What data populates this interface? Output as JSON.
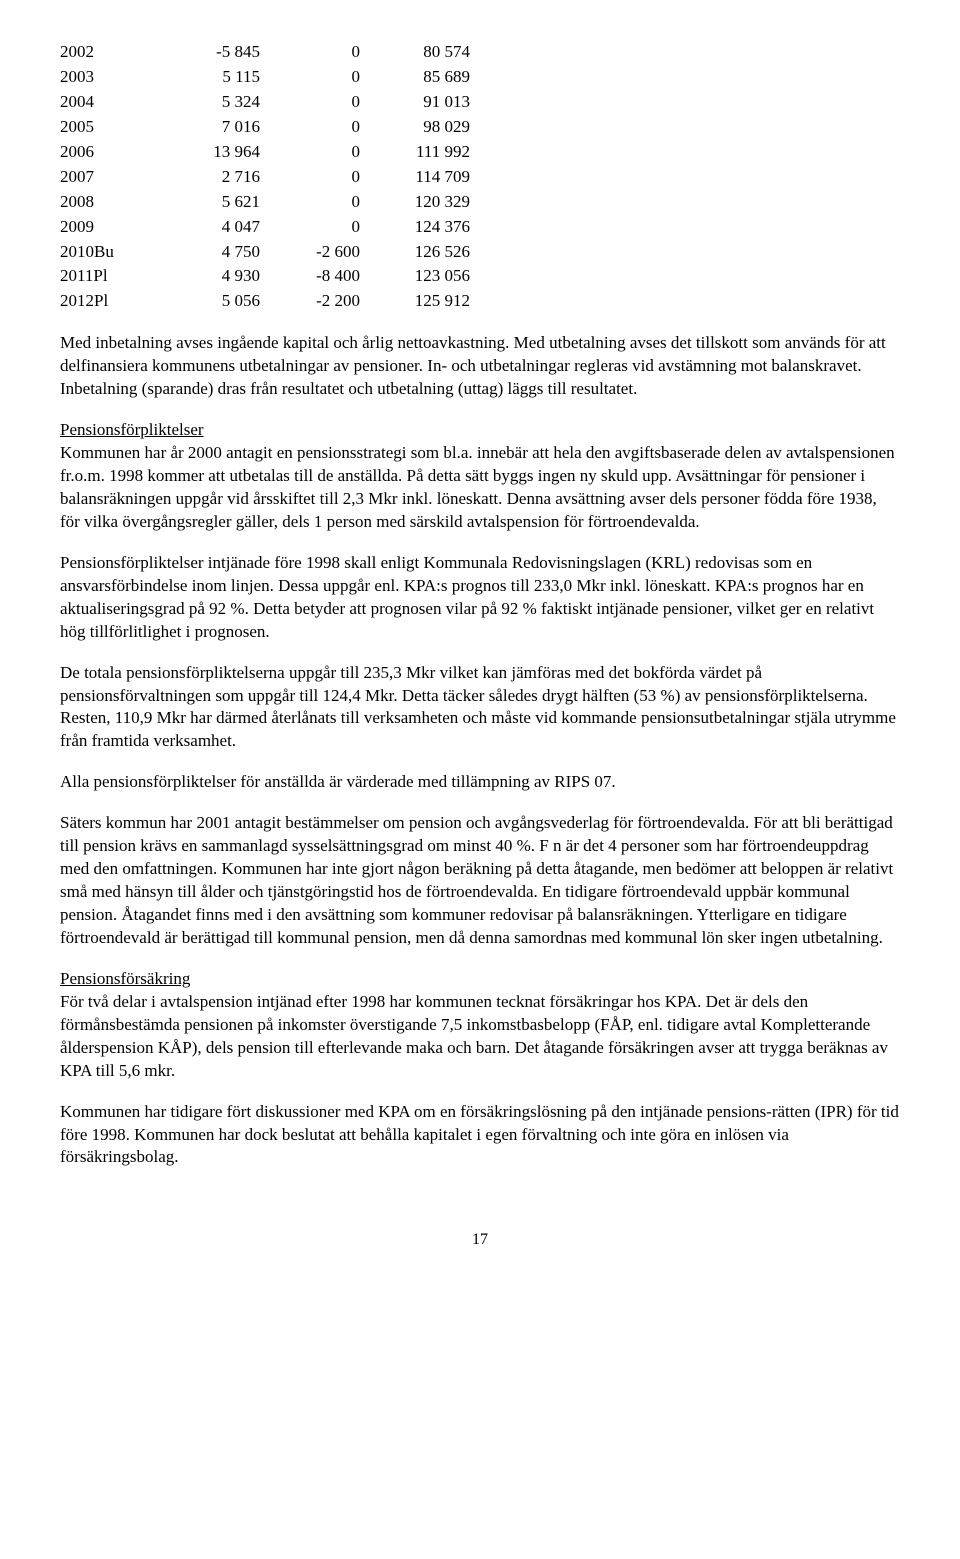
{
  "table": {
    "rows": [
      [
        "2002",
        "-5 845",
        "0",
        "80 574"
      ],
      [
        "2003",
        "5 115",
        "0",
        "85 689"
      ],
      [
        "2004",
        "5 324",
        "0",
        "91 013"
      ],
      [
        "2005",
        "7 016",
        "0",
        "98 029"
      ],
      [
        "2006",
        "13 964",
        "0",
        "111 992"
      ],
      [
        "2007",
        "2 716",
        "0",
        "114 709"
      ],
      [
        "2008",
        "5 621",
        "0",
        "120 329"
      ],
      [
        "2009",
        "4 047",
        "0",
        "124 376"
      ],
      [
        "2010Bu",
        "4 750",
        "-2 600",
        "126 526"
      ],
      [
        "2011Pl",
        "4 930",
        "-8 400",
        "123 056"
      ],
      [
        "2012Pl",
        "5 056",
        "-2 200",
        "125 912"
      ]
    ]
  },
  "paragraphs": {
    "p1": "Med inbetalning avses ingående kapital och årlig nettoavkastning. Med utbetalning avses det tillskott som används för att delfinansiera kommunens utbetalningar av pensioner. In- och utbetalningar regleras vid avstämning mot balanskravet. Inbetalning (sparande) dras från resultatet och utbetalning (uttag) läggs till resultatet.",
    "h2": "Pensionsförpliktelser",
    "p2": "Kommunen har år 2000 antagit en pensionsstrategi som bl.a. innebär att hela den avgiftsbaserade delen av avtalspensionen fr.o.m. 1998 kommer att utbetalas till de anställda. På detta sätt byggs ingen ny skuld upp. Avsättningar för pensioner i balansräkningen uppgår vid årsskiftet till 2,3 Mkr inkl. löneskatt. Denna avsättning avser dels personer födda före 1938, för vilka övergångsregler gäller, dels 1 person med särskild avtalspension för förtroendevalda.",
    "p3": "Pensionsförpliktelser intjänade före 1998 skall enligt Kommunala Redovisningslagen (KRL) redovisas som en ansvarsförbindelse inom linjen. Dessa uppgår enl. KPA:s prognos till 233,0 Mkr inkl. löneskatt. KPA:s prognos har en aktualiseringsgrad på 92 %. Detta betyder att prognosen vilar på 92 % faktiskt intjänade pensioner, vilket ger en relativt hög tillförlitlighet i prognosen.",
    "p4": "De totala pensionsförpliktelserna uppgår till 235,3 Mkr vilket kan jämföras med det bokförda värdet på pensionsförvaltningen som uppgår till 124,4 Mkr. Detta täcker således drygt hälften (53 %) av pensionsförpliktelserna. Resten, 110,9 Mkr har därmed återlånats till verksamheten och måste vid kommande pensionsutbetalningar stjäla utrymme från framtida verksamhet.",
    "p5": "Alla pensionsförpliktelser för anställda är värderade med tillämpning av RIPS 07.",
    "p6": "Säters kommun har 2001 antagit bestämmelser om pension och avgångsvederlag för förtroendevalda. För att bli berättigad till pension krävs en sammanlagd sysselsättningsgrad om minst 40 %. F n är det 4 personer som har förtroendeuppdrag med den omfattningen. Kommunen har inte gjort någon beräkning på detta åtagande, men bedömer att beloppen är relativt små med hänsyn till ålder och tjänstgöringstid hos de förtroendevalda. En tidigare förtroendevald uppbär kommunal pension. Åtagandet finns med i den avsättning som kommuner redovisar på balansräkningen. Ytterligare en tidigare förtroendevald är berättigad till kommunal pension, men då denna samordnas med kommunal lön sker ingen utbetalning.",
    "h3": "Pensionsförsäkring",
    "p7": "För två delar i avtalspension intjänad efter 1998 har kommunen tecknat försäkringar hos KPA. Det är dels den förmånsbestämda pensionen på inkomster överstigande 7,5 inkomstbasbelopp (FÅP, enl. tidigare avtal Kompletterande ålderspension KÅP), dels pension till efterlevande maka och barn. Det åtagande försäkringen avser att trygga beräknas av KPA till 5,6 mkr.",
    "p8": "Kommunen har tidigare fört diskussioner med KPA om en försäkringslösning på den intjänade pensions-rätten (IPR) för tid före 1998. Kommunen har dock beslutat att behålla kapitalet i egen förvaltning och inte göra en inlösen via försäkringsbolag."
  },
  "page_number": "17"
}
